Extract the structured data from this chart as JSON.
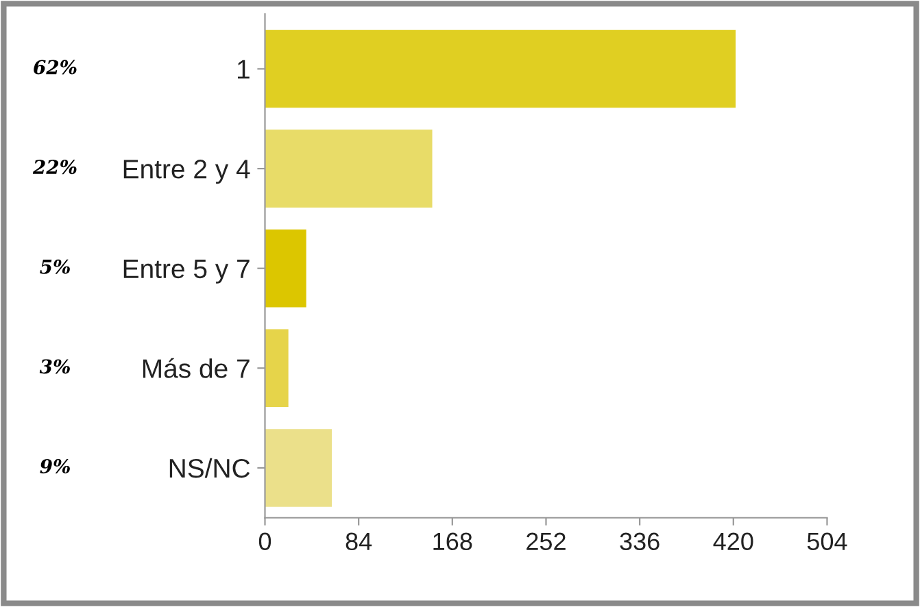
{
  "chart_data": {
    "type": "bar",
    "orientation": "horizontal",
    "categories": [
      "1",
      "Entre 2 y 4",
      "Entre 5 y 7",
      "Más de 7",
      "NS/NC"
    ],
    "values": [
      422,
      150,
      37,
      21,
      60
    ],
    "colors": [
      "#e0cf22",
      "#e8dc68",
      "#dcc600",
      "#e6d44a",
      "#ebe08a"
    ],
    "xlim": [
      0,
      504
    ],
    "xticks": [
      0,
      84,
      168,
      252,
      336,
      420,
      504
    ],
    "grid": false,
    "legend": false,
    "annotations": [
      "62%",
      "22%",
      "5%",
      "3%",
      "9%"
    ]
  }
}
